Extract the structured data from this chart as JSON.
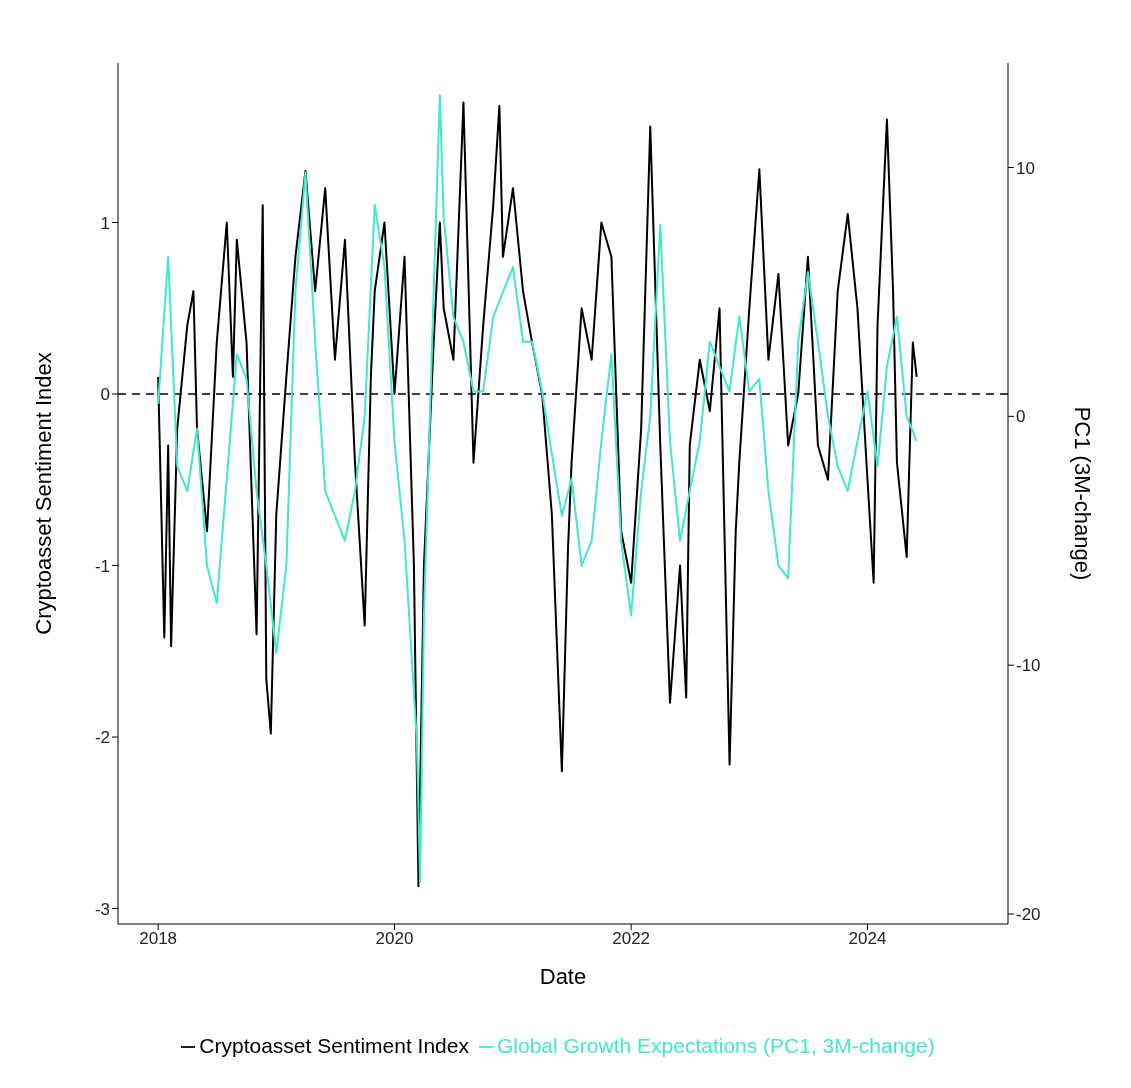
{
  "chart_data": {
    "type": "line",
    "xlabel": "Date",
    "ylabel": "Cryptoasset Sentiment Index",
    "y2label": "PC1 (3M-change)",
    "xlim": [
      "2017-08-30",
      "2025-03-10"
    ],
    "xticks": [
      "2018",
      "2020",
      "2022",
      "2024"
    ],
    "ylim": [
      -3.09,
      1.93
    ],
    "yticks": [
      -3,
      -2,
      -1,
      0,
      1
    ],
    "y2lim": [
      -20.4,
      14.2
    ],
    "y2ticks": [
      -20,
      -10,
      0,
      10
    ],
    "legend": "bottom",
    "line_style": "solid",
    "ref_lines": [
      {
        "axis": "y",
        "value": 0,
        "color": "#000000",
        "line_style": "dashed"
      }
    ],
    "series": [
      {
        "name": "Cryptoasset Sentiment Index",
        "color": "#000000",
        "x": [
          "2018-01-01",
          "2018-01-20",
          "2018-02-01",
          "2018-02-10",
          "2018-03-01",
          "2018-04-01",
          "2018-04-20",
          "2018-05-01",
          "2018-06-01",
          "2018-07-01",
          "2018-08-01",
          "2018-08-20",
          "2018-09-01",
          "2018-10-01",
          "2018-11-01",
          "2018-11-20",
          "2018-12-01",
          "2018-12-15",
          "2019-01-01",
          "2019-02-01",
          "2019-03-01",
          "2019-04-01",
          "2019-05-01",
          "2019-06-01",
          "2019-07-01",
          "2019-08-01",
          "2019-09-01",
          "2019-10-01",
          "2019-10-20",
          "2019-11-01",
          "2019-12-01",
          "2020-01-01",
          "2020-02-01",
          "2020-03-01",
          "2020-03-15",
          "2020-04-01",
          "2020-05-01",
          "2020-05-20",
          "2020-06-01",
          "2020-07-01",
          "2020-08-01",
          "2020-09-01",
          "2020-10-01",
          "2020-11-01",
          "2020-11-20",
          "2020-12-01",
          "2021-01-01",
          "2021-02-01",
          "2021-03-01",
          "2021-04-01",
          "2021-05-01",
          "2021-06-01",
          "2021-06-20",
          "2021-07-01",
          "2021-08-01",
          "2021-09-01",
          "2021-10-01",
          "2021-11-01",
          "2021-12-01",
          "2022-01-01",
          "2022-02-01",
          "2022-03-01",
          "2022-04-01",
          "2022-05-01",
          "2022-06-01",
          "2022-06-20",
          "2022-07-01",
          "2022-08-01",
          "2022-09-01",
          "2022-10-01",
          "2022-11-01",
          "2022-11-20",
          "2022-12-01",
          "2023-01-01",
          "2023-02-01",
          "2023-03-01",
          "2023-04-01",
          "2023-05-01",
          "2023-06-01",
          "2023-07-01",
          "2023-08-01",
          "2023-09-01",
          "2023-10-01",
          "2023-11-01",
          "2023-12-01",
          "2024-01-01",
          "2024-01-20",
          "2024-02-01",
          "2024-03-01",
          "2024-03-20",
          "2024-04-01",
          "2024-05-01",
          "2024-05-20",
          "2024-06-01"
        ],
        "values": [
          0.1,
          -1.42,
          -0.3,
          -1.47,
          -0.2,
          0.4,
          0.6,
          -0.2,
          -0.8,
          0.3,
          1.0,
          0.1,
          0.9,
          0.3,
          -1.4,
          1.1,
          -1.66,
          -1.98,
          -0.7,
          0.1,
          0.8,
          1.3,
          0.6,
          1.2,
          0.2,
          0.9,
          -0.4,
          -1.35,
          0.1,
          0.6,
          1.0,
          0.0,
          0.8,
          -1.0,
          -2.87,
          -1.0,
          0.3,
          1.0,
          0.5,
          0.2,
          1.7,
          -0.4,
          0.4,
          1.1,
          1.68,
          0.8,
          1.2,
          0.6,
          0.3,
          0.0,
          -0.7,
          -2.2,
          -0.9,
          -0.4,
          0.5,
          0.2,
          1.0,
          0.8,
          -0.8,
          -1.1,
          -0.2,
          1.56,
          -0.3,
          -1.8,
          -1.0,
          -1.77,
          -0.3,
          0.2,
          -0.1,
          0.5,
          -2.16,
          -0.8,
          -0.4,
          0.5,
          1.31,
          0.2,
          0.7,
          -0.3,
          0.0,
          0.8,
          -0.3,
          -0.5,
          0.6,
          1.05,
          0.5,
          -0.5,
          -1.1,
          0.4,
          1.6,
          0.6,
          -0.4,
          -0.95,
          0.3,
          0.1
        ]
      },
      {
        "name": "Global Growth Expectations (PC1, 3M-change)",
        "color": "#40e8cc",
        "axis": "y2",
        "x": [
          "2018-01-01",
          "2018-02-01",
          "2018-03-01",
          "2018-04-01",
          "2018-05-01",
          "2018-06-01",
          "2018-07-01",
          "2018-08-01",
          "2018-09-01",
          "2018-10-01",
          "2018-11-01",
          "2018-12-01",
          "2019-01-01",
          "2019-02-01",
          "2019-03-01",
          "2019-04-01",
          "2019-05-01",
          "2019-06-01",
          "2019-07-01",
          "2019-08-01",
          "2019-09-01",
          "2019-10-01",
          "2019-11-01",
          "2019-12-01",
          "2020-01-01",
          "2020-02-01",
          "2020-03-10",
          "2020-03-20",
          "2020-04-01",
          "2020-05-01",
          "2020-05-20",
          "2020-06-01",
          "2020-07-01",
          "2020-08-01",
          "2020-09-01",
          "2020-10-01",
          "2020-11-01",
          "2020-12-01",
          "2021-01-01",
          "2021-02-01",
          "2021-03-01",
          "2021-04-01",
          "2021-05-01",
          "2021-06-01",
          "2021-07-01",
          "2021-08-01",
          "2021-09-01",
          "2021-10-01",
          "2021-11-01",
          "2021-12-01",
          "2022-01-01",
          "2022-02-01",
          "2022-03-01",
          "2022-04-01",
          "2022-05-01",
          "2022-06-01",
          "2022-07-01",
          "2022-08-01",
          "2022-09-01",
          "2022-10-01",
          "2022-11-01",
          "2022-12-01",
          "2023-01-01",
          "2023-02-01",
          "2023-03-01",
          "2023-04-01",
          "2023-05-01",
          "2023-06-01",
          "2023-07-01",
          "2023-08-01",
          "2023-09-01",
          "2023-10-01",
          "2023-11-01",
          "2023-12-01",
          "2024-01-01",
          "2024-02-01",
          "2024-03-01",
          "2024-04-01",
          "2024-05-01",
          "2024-06-01"
        ],
        "values": [
          0.5,
          6.4,
          -2,
          -3,
          -0.5,
          -6,
          -7.5,
          -2.5,
          2.5,
          1.5,
          -3,
          -6,
          -9.5,
          -6,
          5,
          9.8,
          3,
          -3,
          -4,
          -5,
          -3,
          0,
          8.5,
          6,
          -1,
          -5,
          -13,
          -18.7,
          -8,
          5,
          12.9,
          8,
          4,
          3,
          1,
          1,
          4,
          5,
          6,
          3,
          3,
          1,
          -1.5,
          -4,
          -2.5,
          -6,
          -5,
          -1,
          2.5,
          -5,
          -8,
          -3,
          0,
          7.7,
          -1,
          -5,
          -3,
          -1,
          3,
          2,
          1,
          4,
          1,
          1.5,
          -3,
          -6,
          -6.5,
          3,
          5.8,
          3,
          0,
          -2,
          -3,
          -1,
          1,
          -2,
          2,
          4,
          0,
          -1
        ]
      }
    ]
  }
}
